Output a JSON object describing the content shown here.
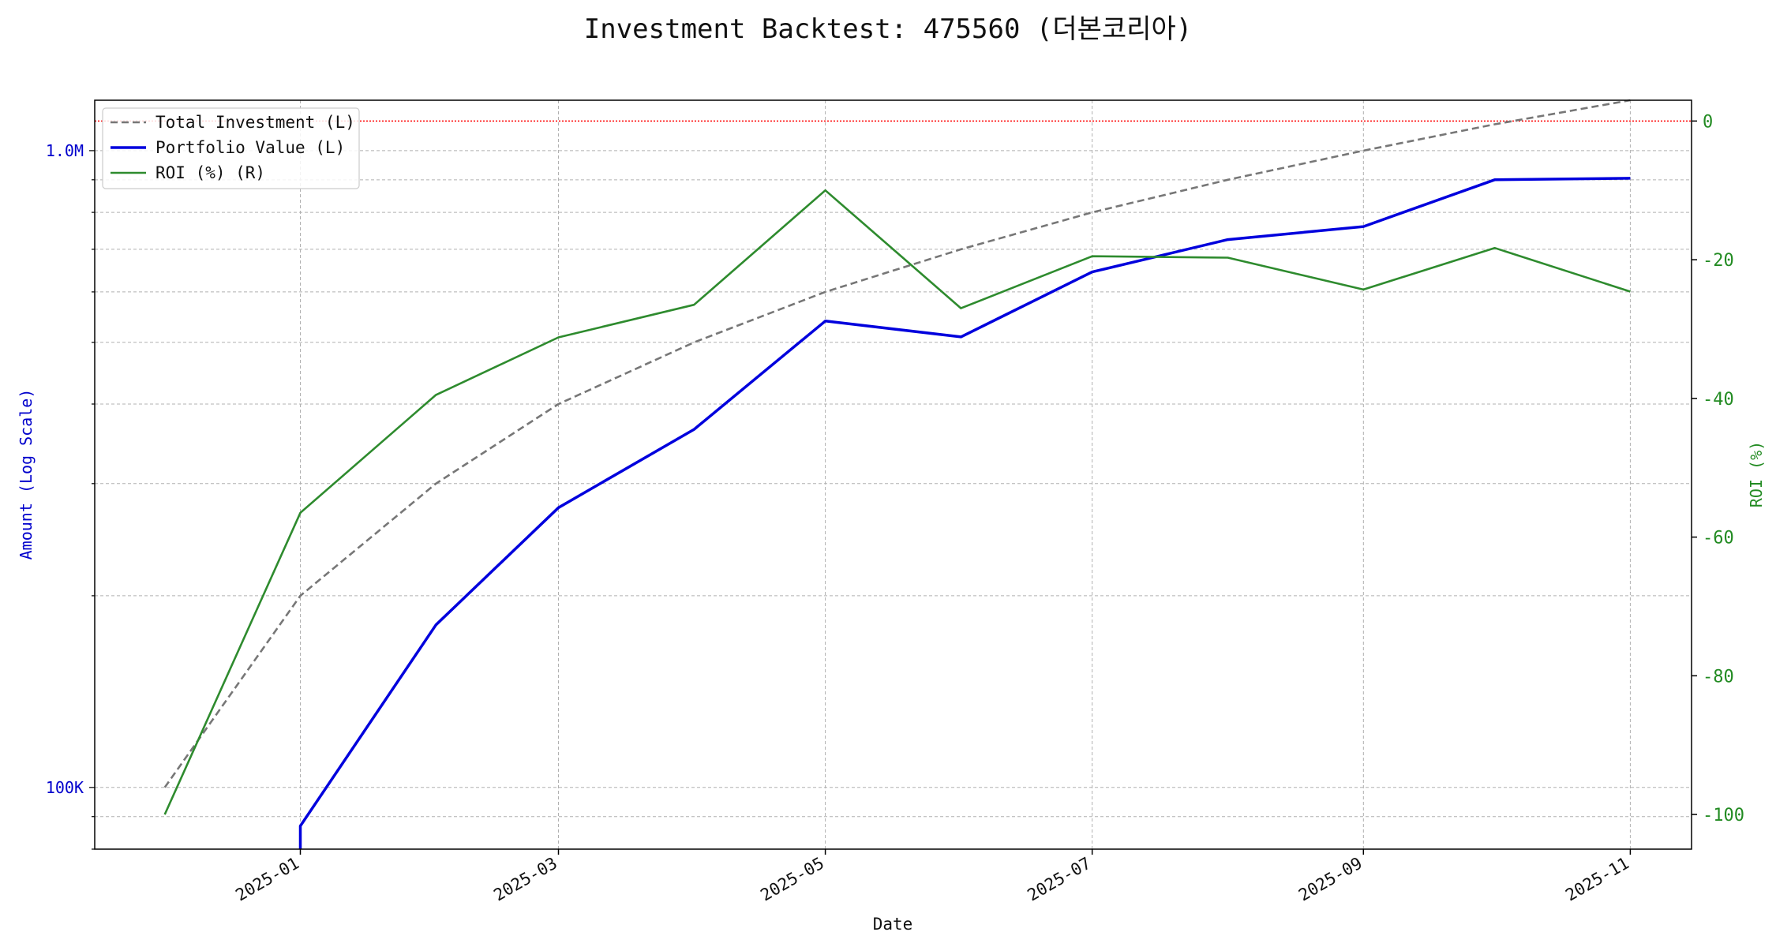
{
  "chart_data": {
    "type": "line",
    "title": "Investment Backtest: 475560 (더본코리아)",
    "xlabel": "Date",
    "ylabel_left": "Amount (Log Scale)",
    "ylabel_right": "ROI (%)",
    "yscale_left": "log",
    "ylim_left": [
      80000,
      1200000
    ],
    "ylim_right": [
      -105,
      3
    ],
    "xlim": [
      "2024-11-15",
      "2025-11-15"
    ],
    "x_ticks": [
      "2025-01",
      "2025-03",
      "2025-05",
      "2025-07",
      "2025-09",
      "2025-11"
    ],
    "y_ticks_left": [
      {
        "value": 100000,
        "label": "100K"
      },
      {
        "value": 1000000,
        "label": "1.0M"
      }
    ],
    "y_ticks_right": [
      0,
      -20,
      -40,
      -60,
      -80,
      -100
    ],
    "grid": true,
    "reference_line": {
      "axis": "right",
      "value": 0,
      "color": "#ff0000",
      "style": "dotted"
    },
    "legend_position": "top-left",
    "series": [
      {
        "name": "Total Investment (L)",
        "axis": "left",
        "color": "#777777",
        "style": "dashed",
        "x": [
          "2024-12-01",
          "2025-01-01",
          "2025-02-01",
          "2025-03-01",
          "2025-04-01",
          "2025-05-01",
          "2025-06-01",
          "2025-07-01",
          "2025-08-01",
          "2025-09-01",
          "2025-10-01",
          "2025-11-01"
        ],
        "values": [
          100000,
          200000,
          300000,
          400000,
          500000,
          600000,
          700000,
          800000,
          900000,
          1000000,
          1100000,
          1200000
        ]
      },
      {
        "name": "Portfolio Value (L)",
        "axis": "left",
        "color": "#0000dd",
        "style": "solid",
        "x": [
          "2025-01-01",
          "2025-01-01",
          "2025-02-01",
          "2025-03-01",
          "2025-04-01",
          "2025-05-01",
          "2025-06-01",
          "2025-07-01",
          "2025-08-01",
          "2025-09-01",
          "2025-10-01",
          "2025-11-01"
        ],
        "values": [
          75000,
          87000,
          180000,
          275000,
          365000,
          540000,
          510000,
          645000,
          725000,
          760000,
          900000,
          905000
        ]
      },
      {
        "name": "ROI (%) (R)",
        "axis": "right",
        "color": "#2e8b2e",
        "style": "solid",
        "x": [
          "2024-12-01",
          "2025-01-01",
          "2025-02-01",
          "2025-03-01",
          "2025-04-01",
          "2025-05-01",
          "2025-06-01",
          "2025-07-01",
          "2025-08-01",
          "2025-09-01",
          "2025-10-01",
          "2025-11-01"
        ],
        "values": [
          -100,
          -56.5,
          -39.5,
          -31.2,
          -26.5,
          -10,
          -27,
          -19.5,
          -19.7,
          -24.3,
          -18.3,
          -24.6
        ]
      }
    ]
  }
}
